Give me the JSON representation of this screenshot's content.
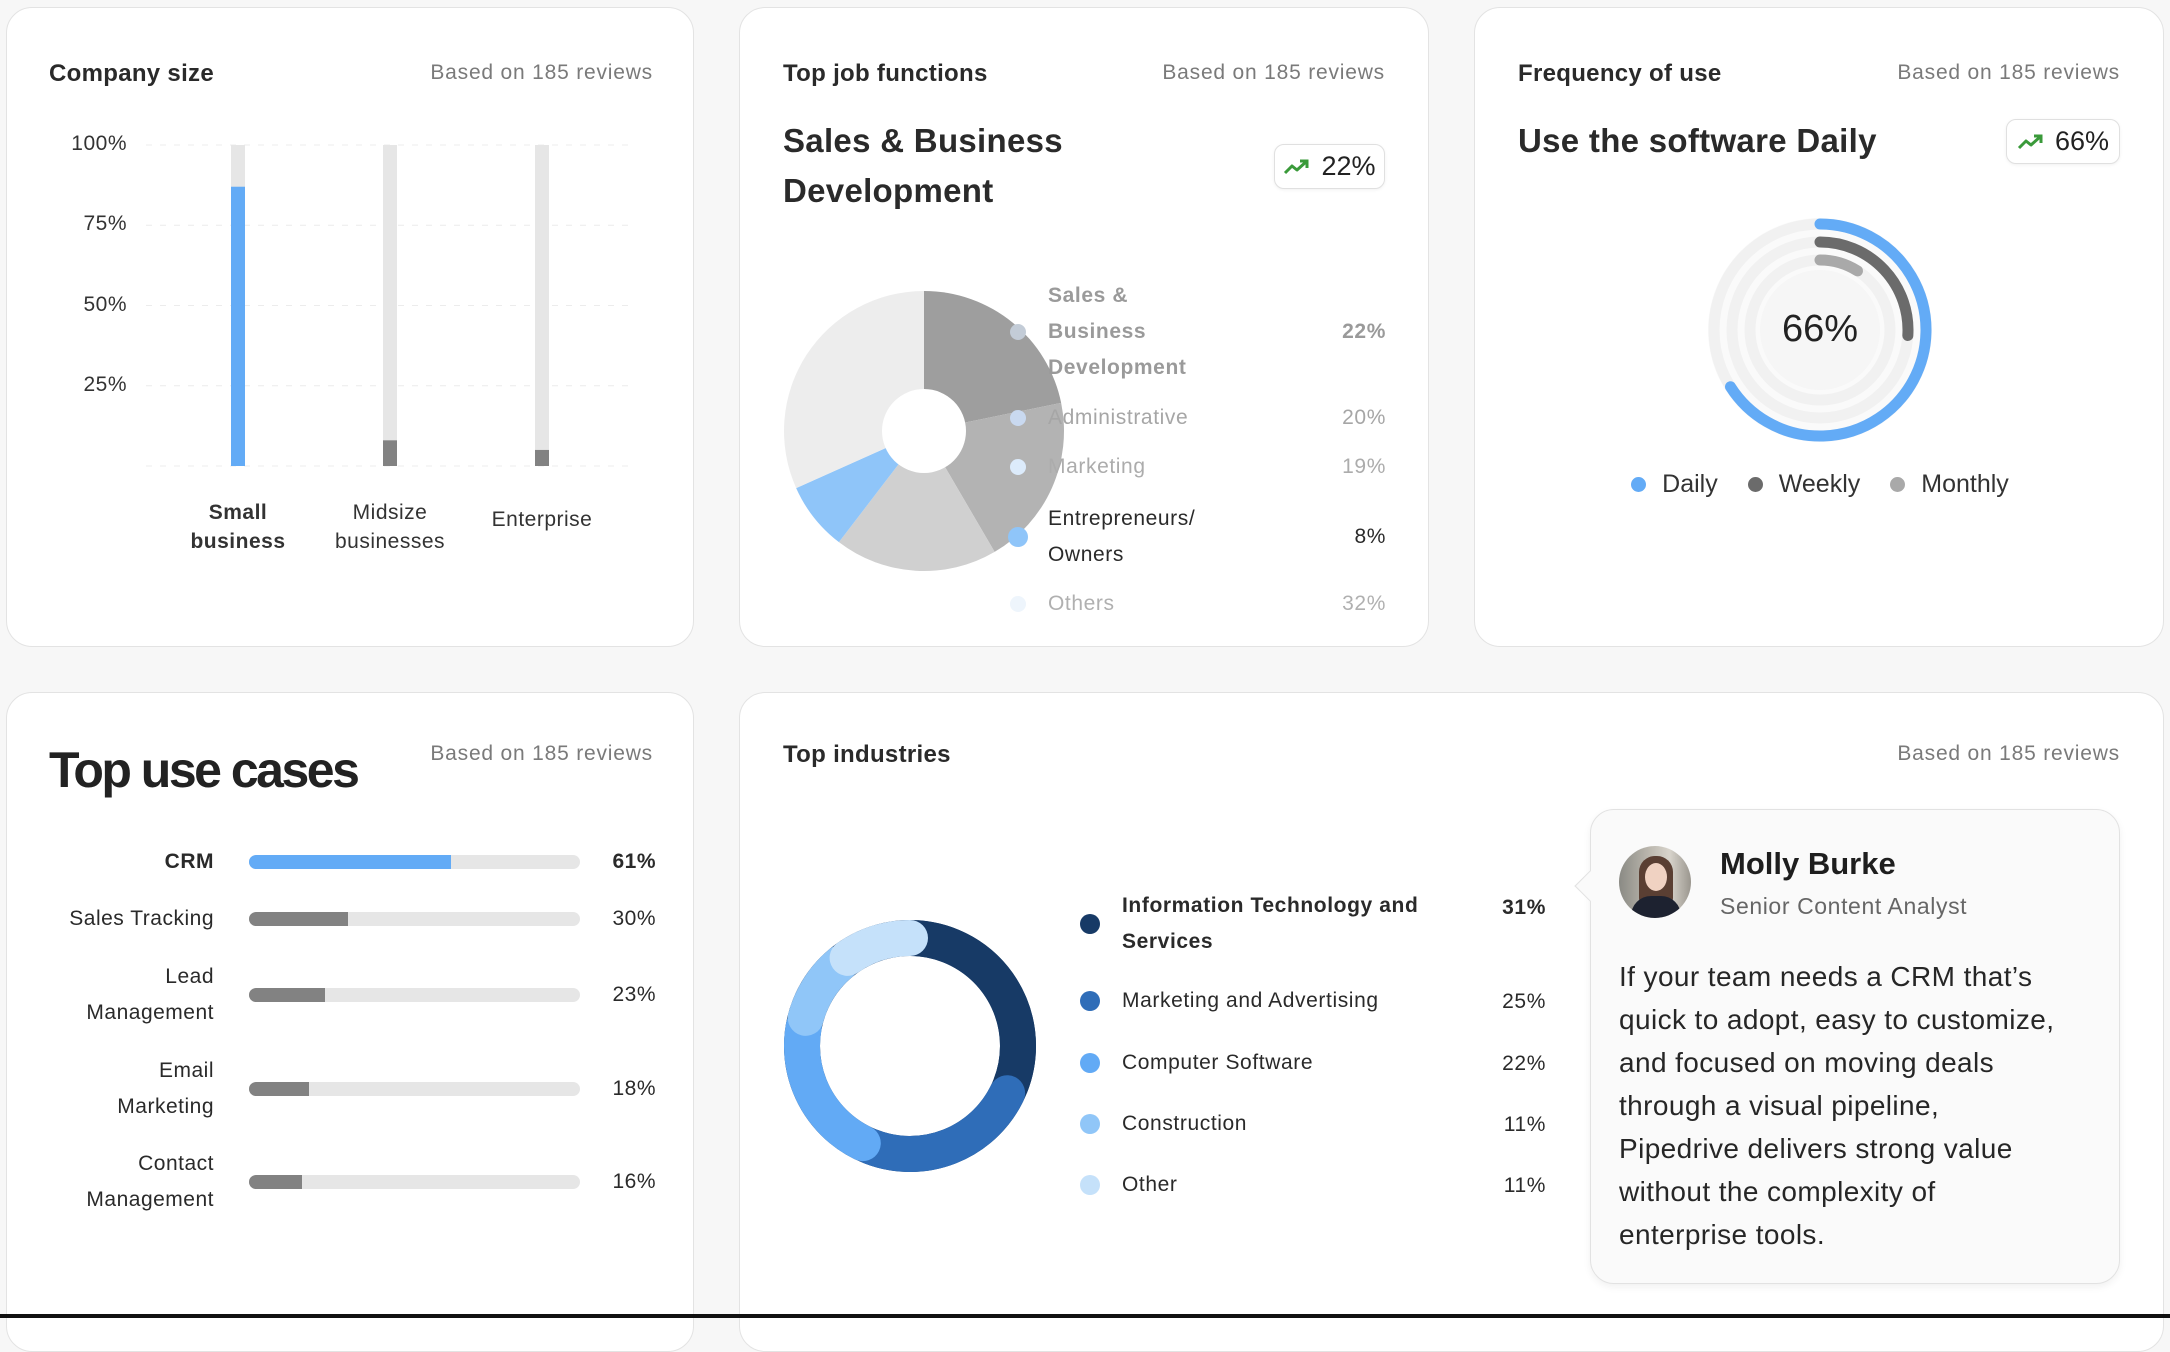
{
  "common": {
    "based_on": "Based on 185 reviews"
  },
  "company_size": {
    "title": "Company size",
    "chart_data": {
      "type": "bar",
      "categories": [
        "Small business",
        "Midsize businesses",
        "Enterprise"
      ],
      "category_lines": [
        [
          "Small",
          "business"
        ],
        [
          "Midsize",
          "businesses"
        ],
        [
          "Enterprise"
        ]
      ],
      "values": [
        87,
        8,
        5
      ],
      "yticks": [
        "100%",
        "75%",
        "50%",
        "25%"
      ],
      "ylim": [
        0,
        100
      ],
      "grid": true,
      "colors": [
        "#63abf6",
        "#828282",
        "#828282"
      ],
      "track_color": "#e6e6e6"
    }
  },
  "job_functions": {
    "title": "Top job functions",
    "heading_lines": [
      "Sales & Business",
      "Development"
    ],
    "badge": {
      "icon": "trending-up-icon",
      "value": "22%"
    },
    "chart_data": {
      "type": "pie",
      "labels": [
        "Sales & Business Development",
        "Administrative",
        "Marketing",
        "Entrepreneurs/ Owners",
        "Others"
      ],
      "label_lines": [
        [
          "Sales &",
          "Business",
          "Development"
        ],
        [
          "Administrative"
        ],
        [
          "Marketing"
        ],
        [
          "Entrepreneurs/",
          "Owners"
        ],
        [
          "Others"
        ]
      ],
      "values": [
        22,
        20,
        19,
        8,
        32
      ],
      "display": [
        "22%",
        "20%",
        "19%",
        "8%",
        "32%"
      ],
      "slice_colors": [
        "#9e9e9e",
        "#b3b3b3",
        "#d0d0d0",
        "#8fc5f9",
        "#ededed"
      ],
      "dot_colors": [
        "#c3ccd7",
        "#c9d9f0",
        "#dcebfb",
        "#8fc5f9",
        "#eef5fc"
      ],
      "highlighted": "Entrepreneurs/ Owners"
    }
  },
  "frequency": {
    "title": "Frequency of use",
    "heading": "Use the software Daily",
    "badge": {
      "icon": "trending-up-icon",
      "value": "66%"
    },
    "center_label": "66%",
    "chart_data": {
      "type": "radial",
      "series": [
        {
          "name": "Daily",
          "value": 66,
          "color": "#63abf6"
        },
        {
          "name": "Weekly",
          "value": 26,
          "color": "#6b6b6b"
        },
        {
          "name": "Monthly",
          "value": 9,
          "color": "#a9a9a9"
        }
      ]
    }
  },
  "use_cases": {
    "title": "Top use cases",
    "chart_data": {
      "type": "bar",
      "orientation": "horizontal",
      "categories": [
        "CRM",
        "Sales Tracking",
        "Lead Management",
        "Email Marketing",
        "Contact Management"
      ],
      "category_lines": [
        [
          "CRM"
        ],
        [
          "Sales Tracking"
        ],
        [
          "Lead",
          "Management"
        ],
        [
          "Email",
          "Marketing"
        ],
        [
          "Contact",
          "Management"
        ]
      ],
      "values": [
        61,
        30,
        23,
        18,
        16
      ],
      "display": [
        "61%",
        "30%",
        "23%",
        "18%",
        "16%"
      ],
      "colors": [
        "#63abf6",
        "#828282",
        "#828282",
        "#828282",
        "#828282"
      ],
      "xlim": [
        0,
        100
      ]
    }
  },
  "industries": {
    "title": "Top industries",
    "chart_data": {
      "type": "pie",
      "variant": "donut",
      "labels": [
        "Information Technology and Services",
        "Marketing and Advertising",
        "Computer Software",
        "Construction",
        "Other"
      ],
      "label_lines": [
        [
          "Information Technology and",
          "Services"
        ],
        [
          "Marketing and Advertising"
        ],
        [
          "Computer Software"
        ],
        [
          "Construction"
        ],
        [
          "Other"
        ]
      ],
      "values": [
        31,
        25,
        22,
        11,
        11
      ],
      "display": [
        "31%",
        "25%",
        "22%",
        "11%",
        "11%"
      ],
      "colors": [
        "#173a66",
        "#2f6db8",
        "#62aaf5",
        "#90c6f8",
        "#c5e1fa"
      ]
    }
  },
  "testimonial": {
    "name": "Molly Burke",
    "role": "Senior Content Analyst",
    "quote_lines": [
      "If your team needs a CRM that’s",
      "quick to adopt, easy to customize,",
      "and focused on moving deals",
      "through a visual pipeline,",
      "Pipedrive delivers strong value",
      "without the complexity of",
      "enterprise tools."
    ]
  }
}
